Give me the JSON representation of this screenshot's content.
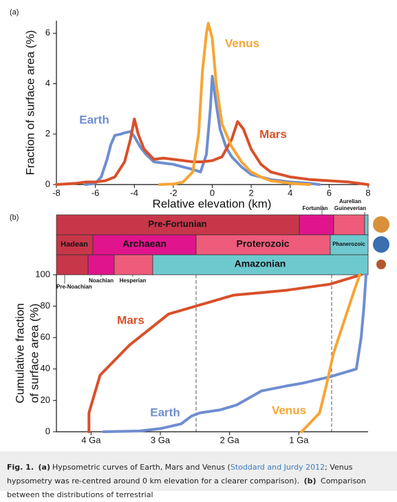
{
  "chart_data": [
    {
      "type": "line",
      "panel_label": "(a)",
      "xlabel": "Relative elevation (km)",
      "ylabel": "Fraction of surface area (%)",
      "xlim": [
        -8,
        8
      ],
      "ylim": [
        0,
        6.5
      ],
      "xticks": [
        -8,
        -6,
        -4,
        -2,
        0,
        2,
        4,
        6,
        8
      ],
      "yticks": [
        0,
        2,
        4,
        6
      ],
      "series": [
        {
          "name": "Earth",
          "color": "#6f8ed0",
          "x": [
            -6.5,
            -6,
            -5.7,
            -5.4,
            -5.2,
            -5,
            -4.7,
            -4.5,
            -4.2,
            -4,
            -3.7,
            -3.4,
            -3,
            -2.5,
            -2,
            -1.5,
            -1,
            -0.6,
            -0.3,
            -0.1,
            0,
            0.2,
            0.4,
            0.7,
            1,
            1.5,
            2,
            3,
            4,
            5,
            5.5
          ],
          "values": [
            0,
            0.05,
            0.3,
            1.0,
            1.6,
            1.95,
            2.0,
            2.05,
            2.1,
            1.9,
            1.5,
            1.2,
            0.9,
            0.85,
            0.8,
            0.7,
            0.6,
            0.5,
            1.2,
            3.0,
            4.3,
            3.2,
            2.2,
            1.5,
            1.1,
            0.7,
            0.4,
            0.2,
            0.1,
            0.05,
            0
          ]
        },
        {
          "name": "Mars",
          "color": "#d9502a",
          "x": [
            -8,
            -7,
            -6.5,
            -6,
            -5.5,
            -5,
            -4.5,
            -4.2,
            -4,
            -3.8,
            -3.5,
            -3,
            -2.5,
            -2,
            -1.5,
            -1,
            -0.5,
            0,
            0.5,
            1,
            1.3,
            1.6,
            2,
            2.5,
            3,
            4,
            5,
            6,
            7,
            8
          ],
          "values": [
            0,
            0.05,
            0.1,
            0.1,
            0.15,
            0.3,
            0.9,
            1.8,
            2.6,
            2.0,
            1.4,
            1.0,
            1.05,
            1.0,
            0.95,
            0.9,
            0.9,
            0.95,
            1.1,
            1.8,
            2.5,
            2.2,
            1.4,
            0.8,
            0.5,
            0.3,
            0.2,
            0.15,
            0.1,
            0
          ]
        },
        {
          "name": "Venus",
          "color": "#f7a535",
          "x": [
            -2.7,
            -2,
            -1.5,
            -1,
            -0.7,
            -0.5,
            -0.3,
            -0.2,
            0,
            0.2,
            0.5,
            1,
            1.5,
            2,
            2.5,
            3,
            4,
            4.5,
            5
          ],
          "values": [
            0,
            0.02,
            0.1,
            0.5,
            2.0,
            4.5,
            6.0,
            6.4,
            5.8,
            4.0,
            2.4,
            1.5,
            0.9,
            0.5,
            0.3,
            0.15,
            0.05,
            0.02,
            0
          ]
        }
      ]
    },
    {
      "type": "line",
      "panel_label": "(b)",
      "ylabel": [
        "Cumulative fraction",
        "of surface area (%)"
      ],
      "xlim": [
        4.5,
        0
      ],
      "ylim": [
        0,
        100
      ],
      "xticks": [
        {
          "value": 4,
          "label": "4 Ga"
        },
        {
          "value": 3,
          "label": "3 Ga"
        },
        {
          "value": 2,
          "label": "2 Ga"
        },
        {
          "value": 1,
          "label": "1 Ga"
        }
      ],
      "yticks": [
        0,
        20,
        40,
        60,
        80,
        100
      ],
      "timescale": [
        [
          "Pre-Fortunian",
          "Fortunian",
          "Aurelian",
          "Guineverian"
        ],
        [
          "Hadean",
          "Archaean",
          "Proterozoic",
          "Phanerozoic"
        ],
        [
          "Pre-Noachian",
          "Noachian",
          "Hesperian",
          "Amazonian"
        ]
      ],
      "series": [
        {
          "name": "Mars",
          "color": "#d9502a",
          "x": [
            4.03,
            4.03,
            3.87,
            3.45,
            2.88,
            1.94,
            1.2,
            0.55,
            0.1
          ],
          "values": [
            0,
            12,
            36,
            55,
            75,
            87,
            90,
            94,
            100
          ]
        },
        {
          "name": "Earth",
          "color": "#6f8ed0",
          "x": [
            3.82,
            3.3,
            3.0,
            2.7,
            2.55,
            2.43,
            2.13,
            1.9,
            1.54,
            1.2,
            0.94,
            0.55,
            0.17,
            0.1,
            0.06,
            0.03
          ],
          "values": [
            0,
            0.5,
            2,
            5,
            10,
            12,
            14,
            17,
            26,
            29,
            31,
            35,
            40,
            60,
            80,
            100
          ]
        },
        {
          "name": "Venus",
          "color": "#f7a535",
          "x": [
            0.96,
            0.7,
            0.6,
            0.5,
            0.35,
            0.2,
            0.12
          ],
          "values": [
            0,
            12,
            30,
            50,
            70,
            90,
            100
          ]
        }
      ]
    }
  ],
  "caption": [
    "Fig. 1.",
    "(a)",
    "Hypsometric curves of Earth, Mars and Venus (",
    "Stoddard and Jurdy 2012",
    "; Venus hypsometry was re-centred around 0 km elevation for a clearer comparison).",
    "(b)",
    "Comparison between the distributions of terrestrial"
  ]
}
